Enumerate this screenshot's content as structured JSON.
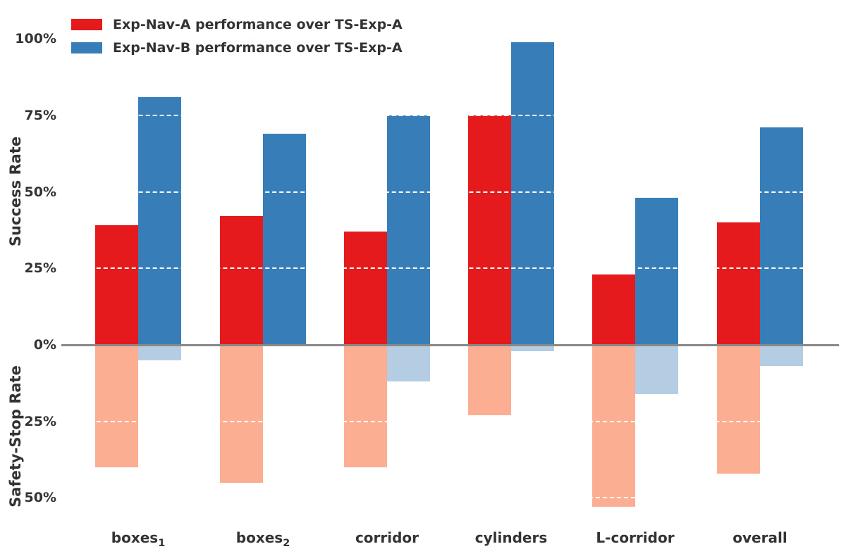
{
  "legend": {
    "items": [
      {
        "label": "Exp-Nav-A performance over TS-Exp-A",
        "color": "#e41a1c"
      },
      {
        "label": "Exp-Nav-B performance over TS-Exp-A",
        "color": "#377eb8"
      }
    ]
  },
  "y_axis_top": {
    "title": "Success Rate",
    "ticks": [
      {
        "text": "100%",
        "pct": 100
      },
      {
        "text": "75%",
        "pct": 75
      },
      {
        "text": "50%",
        "pct": 50
      },
      {
        "text": "25%",
        "pct": 25
      },
      {
        "text": "0%",
        "pct": 0
      }
    ]
  },
  "y_axis_bottom": {
    "title": "Safety-Stop Rate",
    "ticks": [
      {
        "text": "25%",
        "pct": 25
      },
      {
        "text": "50%",
        "pct": 50
      }
    ]
  },
  "x_axis": {
    "categories": [
      {
        "name": "boxes_1",
        "text": "boxes",
        "sub": "1"
      },
      {
        "name": "boxes_2",
        "text": "boxes",
        "sub": "2"
      },
      {
        "name": "corridor",
        "text": "corridor",
        "sub": ""
      },
      {
        "name": "cylinders",
        "text": "cylinders",
        "sub": ""
      },
      {
        "name": "L-corridor",
        "text": "L-corridor",
        "sub": ""
      },
      {
        "name": "overall",
        "text": "overall",
        "sub": ""
      }
    ]
  },
  "chart_data": {
    "type": "bar",
    "layout_note": "grouped diverging bars: upper panel = Success Rate (bars grow up from 0%), lower panel = Safety-Stop Rate (lighter bars grow down from 0%)",
    "title": "",
    "categories": [
      "boxes_1",
      "boxes_2",
      "corridor",
      "cylinders",
      "L-corridor",
      "overall"
    ],
    "series": [
      {
        "name": "Exp-Nav-A performance over TS-Exp-A",
        "metric": "success_rate",
        "direction": "up",
        "slot": "left",
        "color": "#e41a1c",
        "values_pct": [
          39,
          42,
          37,
          75,
          23,
          40
        ]
      },
      {
        "name": "Exp-Nav-B performance over TS-Exp-A",
        "metric": "success_rate",
        "direction": "up",
        "slot": "right",
        "color": "#377eb8",
        "values_pct": [
          81,
          69,
          75,
          99,
          48,
          71
        ]
      },
      {
        "name": "Exp-Nav-A performance over TS-Exp-A",
        "metric": "safety_stop_rate",
        "direction": "down",
        "slot": "left",
        "color": "#fbae92",
        "values_pct": [
          40,
          45,
          40,
          23,
          53,
          42
        ]
      },
      {
        "name": "Exp-Nav-B performance over TS-Exp-A",
        "metric": "safety_stop_rate",
        "direction": "down",
        "slot": "right",
        "color": "#b4cde2",
        "values_pct": [
          5,
          0,
          12,
          2,
          16,
          7
        ]
      }
    ],
    "ylabel_top": "Success Rate",
    "ylabel_bottom": "Safety-Stop Rate",
    "y_top_range": [
      0,
      100
    ],
    "y_bottom_range": [
      0,
      50
    ],
    "grid": "horizontal dashed",
    "legend_position": "upper left",
    "baseline_color": "#888888",
    "gridline_color": "#d9d9d9",
    "text_color": "#333333"
  }
}
